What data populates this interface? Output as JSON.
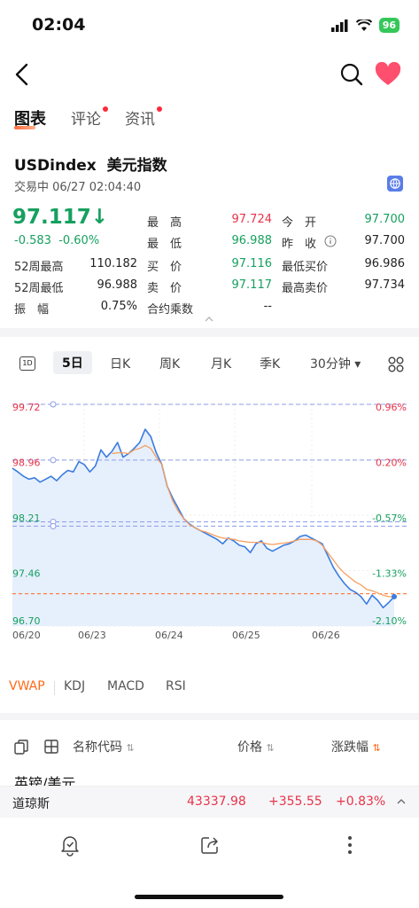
{
  "status_bar": {
    "time": "02:04",
    "battery": "96"
  },
  "tabs": [
    {
      "label": "图表",
      "active": true
    },
    {
      "label": "评论",
      "dot": true
    },
    {
      "label": "资讯",
      "dot": true
    }
  ],
  "quote": {
    "symbol": "USDindex",
    "name": "美元指数",
    "status": "交易中 06/27 02:04:40",
    "price": "97.117",
    "arrow": "↓",
    "change": "-0.583",
    "change_pct": "-0.60%",
    "stats": {
      "high_label": "最　高",
      "high": "97.724",
      "open_label": "今　开",
      "open": "97.700",
      "low_label": "最　低",
      "low": "96.988",
      "prev_label": "昨　收",
      "prev": "97.700",
      "w52_high_label": "52周最高",
      "w52_high": "110.182",
      "bid_label": "买　价",
      "bid": "97.116",
      "min_bid_label": "最低买价",
      "min_bid": "96.986",
      "w52_low_label": "52周最低",
      "w52_low": "96.988",
      "ask_label": "卖　价",
      "ask": "97.117",
      "max_ask_label": "最高卖价",
      "max_ask": "97.734",
      "amp_label": "振　幅",
      "amp": "0.75%",
      "mult_label": "合约乘数",
      "mult": "--"
    }
  },
  "period_bar": [
    "5日",
    "日K",
    "周K",
    "月K",
    "季K",
    "30分钟 ▾"
  ],
  "chart_data": {
    "type": "line",
    "y_left_ticks": [
      "99.72",
      "98.96",
      "98.21",
      "97.46",
      "96.70"
    ],
    "y_right_ticks": [
      "0.96%",
      "0.20%",
      "-0.57%",
      "-1.33%",
      "-2.10%"
    ],
    "x_ticks": [
      "06/20",
      "06/23",
      "06/24",
      "06/25",
      "06/26"
    ],
    "ylim": [
      96.7,
      99.72
    ],
    "series": [
      {
        "values": [
          98.85,
          98.8,
          98.74,
          98.7,
          98.72,
          98.66,
          98.7,
          98.74,
          98.68,
          98.76,
          98.82,
          98.8,
          98.94,
          98.9,
          98.8,
          98.88,
          99.1,
          99.0,
          99.08,
          99.2,
          99.0,
          99.05,
          99.12,
          99.2,
          99.38,
          99.28,
          99.06,
          98.9,
          98.6,
          98.44,
          98.3,
          98.16,
          98.09,
          98.04,
          98.0,
          97.96,
          97.92,
          97.88,
          97.82,
          97.9,
          97.86,
          97.8,
          97.78,
          97.7,
          97.82,
          97.86,
          97.76,
          97.72,
          97.76,
          97.8,
          97.82,
          97.86,
          97.92,
          97.94,
          97.9,
          97.86,
          97.82,
          97.66,
          97.5,
          97.38,
          97.28,
          97.2,
          97.16,
          97.1,
          97.0,
          97.12,
          97.05,
          96.95,
          97.02,
          97.1
        ]
      },
      {
        "values": [
          null,
          null,
          null,
          null,
          null,
          null,
          null,
          null,
          null,
          null,
          null,
          null,
          null,
          null,
          null,
          null,
          null,
          null,
          99.05,
          99.06,
          99.06,
          99.05,
          99.1,
          99.12,
          99.16,
          99.12,
          99.0,
          98.9,
          98.6,
          98.4,
          98.26,
          98.16,
          98.08,
          98.04,
          98.0,
          97.98,
          97.95,
          97.92,
          97.9,
          97.89,
          97.88,
          97.86,
          97.85,
          97.84,
          97.84,
          97.84,
          97.82,
          97.81,
          97.82,
          97.83,
          97.84,
          97.86,
          97.88,
          97.88,
          97.88,
          97.86,
          97.8,
          97.7,
          97.6,
          97.5,
          97.42,
          97.36,
          97.3,
          97.26,
          97.2,
          97.18,
          97.15,
          97.12,
          97.1,
          97.1
        ]
      }
    ],
    "h_lines": [
      99.72,
      98.96,
      98.12,
      98.06,
      97.14
    ]
  },
  "indicators": [
    "VWAP",
    "KDJ",
    "MACD",
    "RSI"
  ],
  "list_header": {
    "name": "名称代码",
    "price": "价格",
    "change": "涨跌幅"
  },
  "partial_row": "英镑/美元",
  "ticker": {
    "name": "道琼斯",
    "price": "43337.98",
    "change": "+355.55",
    "pct": "+0.83%"
  },
  "colors": {
    "up": "#e8334a",
    "down": "#16a05f",
    "accent": "#ff6a1a"
  }
}
